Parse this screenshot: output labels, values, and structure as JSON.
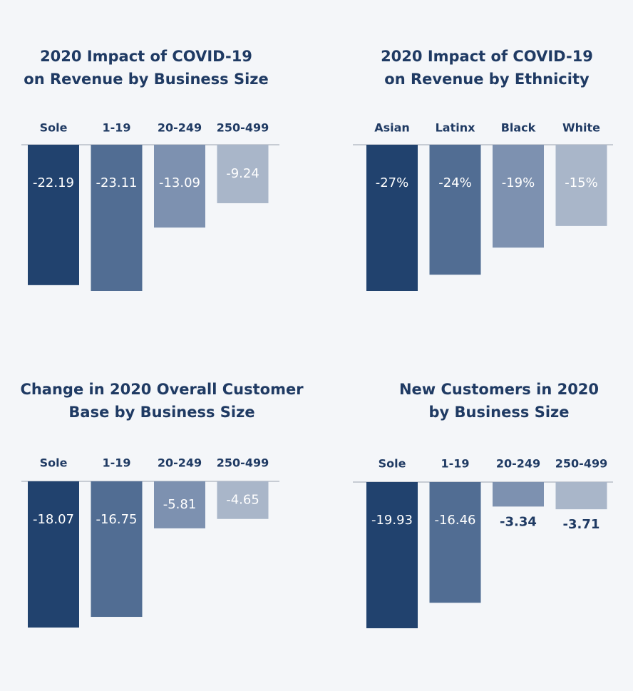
{
  "chart_data": [
    {
      "type": "bar",
      "title": [
        "2020 Impact of COVID-19",
        "on Revenue by Business Size"
      ],
      "categories": [
        "Sole",
        "1-19",
        "20-249",
        "250-499"
      ],
      "values": [
        -22.19,
        -23.11,
        -13.09,
        -9.24
      ],
      "colors": [
        "#21426e",
        "#516d93",
        "#7d91b0",
        "#a9b6c9"
      ]
    },
    {
      "type": "bar",
      "title": [
        "2020 Impact of COVID-19",
        "on Revenue by Ethnicity"
      ],
      "categories": [
        "Asian",
        "Latinx",
        "Black",
        "White"
      ],
      "values": [
        -27,
        -24,
        -19,
        -15
      ],
      "value_labels": [
        "-27%",
        "-24%",
        "-19%",
        "-15%"
      ],
      "colors": [
        "#21426e",
        "#516d93",
        "#7d91b0",
        "#a9b6c9"
      ]
    },
    {
      "type": "bar",
      "title": [
        "Change in 2020 Overall Customer",
        "Base by Business Size"
      ],
      "categories": [
        "Sole",
        "1-19",
        "20-249",
        "250-499"
      ],
      "values": [
        -18.07,
        -16.75,
        -5.81,
        -4.65
      ],
      "colors": [
        "#21426e",
        "#516d93",
        "#7d91b0",
        "#a9b6c9"
      ]
    },
    {
      "type": "bar",
      "title": [
        "New Customers in 2020",
        "by Business Size"
      ],
      "categories": [
        "Sole",
        "1-19",
        "20-249",
        "250-499"
      ],
      "values": [
        -19.93,
        -16.46,
        -3.34,
        -3.71
      ],
      "colors": [
        "#21426e",
        "#516d93",
        "#7d91b0",
        "#a9b6c9"
      ]
    }
  ]
}
